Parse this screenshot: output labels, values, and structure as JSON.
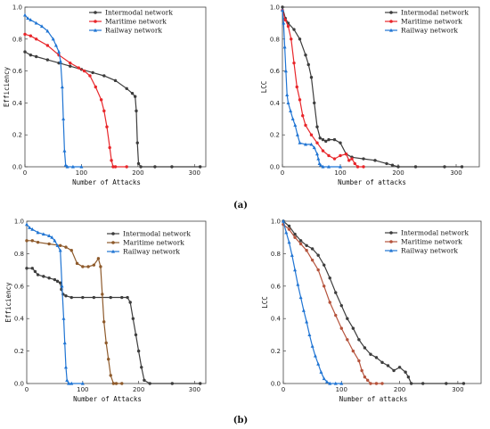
{
  "figure": {
    "label_a": "(a)",
    "label_b": "(b)"
  },
  "chart_data": [
    {
      "type": "line",
      "panel": "a-left",
      "xlabel": "Number of Attacks",
      "ylabel": "Efficiency",
      "xlim": [
        0,
        320
      ],
      "ylim": [
        0,
        1.0
      ],
      "xticks": [
        0,
        100,
        200,
        300
      ],
      "yticks": [
        0.0,
        0.2,
        0.4,
        0.6,
        0.8,
        1.0
      ],
      "legend_position": "top-center",
      "series": [
        {
          "name": "Intermodal network",
          "color": "#3d3d3d",
          "marker": "circle",
          "x": [
            0,
            10,
            20,
            40,
            60,
            80,
            100,
            120,
            140,
            160,
            180,
            190,
            195,
            197,
            199,
            201,
            205,
            230,
            260,
            310
          ],
          "y": [
            0.72,
            0.7,
            0.69,
            0.67,
            0.65,
            0.63,
            0.61,
            0.59,
            0.57,
            0.54,
            0.49,
            0.46,
            0.44,
            0.35,
            0.15,
            0.02,
            0.0,
            0.0,
            0.0,
            0.0
          ]
        },
        {
          "name": "Maritime network",
          "color": "#e8262a",
          "marker": "circle",
          "x": [
            0,
            10,
            20,
            40,
            60,
            80,
            95,
            105,
            115,
            125,
            135,
            140,
            145,
            150,
            153,
            156,
            160,
            180
          ],
          "y": [
            0.83,
            0.82,
            0.8,
            0.76,
            0.7,
            0.65,
            0.62,
            0.6,
            0.57,
            0.5,
            0.42,
            0.35,
            0.25,
            0.12,
            0.04,
            0.0,
            0.0,
            0.0
          ]
        },
        {
          "name": "Railway network",
          "color": "#1f74d3",
          "marker": "triangle",
          "x": [
            0,
            5,
            10,
            20,
            30,
            40,
            50,
            55,
            60,
            63,
            66,
            68,
            70,
            72,
            75,
            85,
            100
          ],
          "y": [
            0.95,
            0.93,
            0.92,
            0.9,
            0.88,
            0.85,
            0.8,
            0.76,
            0.72,
            0.66,
            0.5,
            0.3,
            0.1,
            0.01,
            0.0,
            0.0,
            0.0
          ]
        }
      ]
    },
    {
      "type": "line",
      "panel": "a-right",
      "xlabel": "Number of attacks",
      "ylabel": "LCC",
      "xlim": [
        0,
        340
      ],
      "ylim": [
        0,
        1.0
      ],
      "xticks": [
        0,
        100,
        200,
        300
      ],
      "yticks": [
        0.0,
        0.2,
        0.4,
        0.6,
        0.8,
        1.0
      ],
      "legend_position": "top-right",
      "series": [
        {
          "name": "Intermodal network",
          "color": "#3d3d3d",
          "marker": "circle",
          "x": [
            0,
            5,
            10,
            20,
            30,
            40,
            45,
            50,
            55,
            60,
            65,
            70,
            75,
            80,
            90,
            100,
            110,
            120,
            140,
            160,
            180,
            190,
            200,
            230,
            280,
            310
          ],
          "y": [
            1.0,
            0.93,
            0.9,
            0.86,
            0.8,
            0.7,
            0.64,
            0.56,
            0.4,
            0.25,
            0.18,
            0.17,
            0.16,
            0.17,
            0.17,
            0.15,
            0.08,
            0.06,
            0.05,
            0.04,
            0.02,
            0.01,
            0.0,
            0.0,
            0.0,
            0.0
          ]
        },
        {
          "name": "Maritime network",
          "color": "#e8262a",
          "marker": "circle",
          "x": [
            0,
            5,
            10,
            15,
            20,
            25,
            30,
            35,
            40,
            50,
            60,
            70,
            80,
            90,
            100,
            110,
            115,
            120,
            125,
            130,
            140
          ],
          "y": [
            0.98,
            0.92,
            0.88,
            0.8,
            0.65,
            0.5,
            0.42,
            0.32,
            0.26,
            0.2,
            0.15,
            0.1,
            0.07,
            0.05,
            0.07,
            0.08,
            0.04,
            0.05,
            0.02,
            0.0,
            0.0
          ]
        },
        {
          "name": "Railway network",
          "color": "#1f74d3",
          "marker": "triangle",
          "x": [
            0,
            2,
            4,
            6,
            8,
            10,
            14,
            18,
            22,
            26,
            30,
            40,
            50,
            55,
            60,
            62,
            64,
            66,
            70,
            80,
            100
          ],
          "y": [
            0.98,
            0.9,
            0.75,
            0.6,
            0.45,
            0.4,
            0.35,
            0.3,
            0.26,
            0.2,
            0.15,
            0.14,
            0.14,
            0.12,
            0.08,
            0.05,
            0.02,
            0.01,
            0.0,
            0.0,
            0.0
          ]
        }
      ]
    },
    {
      "type": "line",
      "panel": "b-left",
      "xlabel": "Number of Attacks",
      "ylabel": "Efficiency",
      "xlim": [
        0,
        320
      ],
      "ylim": [
        0,
        1.0
      ],
      "xticks": [
        0,
        100,
        200,
        300
      ],
      "yticks": [
        0.0,
        0.2,
        0.4,
        0.6,
        0.8,
        1.0
      ],
      "legend_position": "top-right",
      "series": [
        {
          "name": "Intermodal network",
          "color": "#3d3d3d",
          "marker": "circle",
          "x": [
            0,
            10,
            15,
            20,
            30,
            40,
            50,
            55,
            60,
            62,
            65,
            70,
            80,
            100,
            120,
            150,
            170,
            180,
            185,
            190,
            195,
            200,
            205,
            210,
            220,
            260,
            310
          ],
          "y": [
            0.71,
            0.71,
            0.69,
            0.67,
            0.66,
            0.65,
            0.64,
            0.63,
            0.62,
            0.58,
            0.55,
            0.54,
            0.53,
            0.53,
            0.53,
            0.53,
            0.53,
            0.53,
            0.5,
            0.4,
            0.3,
            0.2,
            0.1,
            0.02,
            0.0,
            0.0,
            0.0
          ]
        },
        {
          "name": "Maritime network",
          "color": "#8e5a2b",
          "marker": "circle",
          "x": [
            0,
            10,
            20,
            40,
            60,
            70,
            80,
            90,
            100,
            110,
            120,
            128,
            132,
            135,
            138,
            142,
            146,
            150,
            155,
            160,
            170
          ],
          "y": [
            0.88,
            0.88,
            0.87,
            0.86,
            0.85,
            0.84,
            0.82,
            0.74,
            0.72,
            0.72,
            0.73,
            0.77,
            0.72,
            0.55,
            0.38,
            0.25,
            0.15,
            0.05,
            0.0,
            0.0,
            0.0
          ]
        },
        {
          "name": "Railway network",
          "color": "#1f74d3",
          "marker": "triangle",
          "x": [
            0,
            5,
            10,
            20,
            30,
            40,
            45,
            50,
            55,
            60,
            63,
            66,
            68,
            70,
            72,
            75,
            80,
            100
          ],
          "y": [
            0.98,
            0.96,
            0.95,
            0.93,
            0.92,
            0.91,
            0.9,
            0.88,
            0.85,
            0.82,
            0.6,
            0.4,
            0.25,
            0.1,
            0.02,
            0.0,
            0.0,
            0.0
          ]
        }
      ]
    },
    {
      "type": "line",
      "panel": "b-right",
      "xlabel": "Number of attacks",
      "ylabel": "LCC",
      "xlim": [
        0,
        340
      ],
      "ylim": [
        0,
        1.0
      ],
      "xticks": [
        0,
        100,
        200,
        300
      ],
      "yticks": [
        0.0,
        0.2,
        0.4,
        0.6,
        0.8,
        1.0
      ],
      "legend_position": "top-right",
      "series": [
        {
          "name": "Intermodal network",
          "color": "#3d3d3d",
          "marker": "circle",
          "x": [
            0,
            10,
            20,
            30,
            40,
            50,
            60,
            70,
            80,
            90,
            100,
            110,
            120,
            130,
            140,
            150,
            160,
            170,
            180,
            190,
            200,
            210,
            215,
            220,
            240,
            280,
            310
          ],
          "y": [
            1.0,
            0.97,
            0.92,
            0.88,
            0.85,
            0.83,
            0.79,
            0.73,
            0.65,
            0.56,
            0.48,
            0.4,
            0.34,
            0.27,
            0.22,
            0.18,
            0.16,
            0.13,
            0.11,
            0.08,
            0.1,
            0.07,
            0.04,
            0.0,
            0.0,
            0.0,
            0.0
          ]
        },
        {
          "name": "Maritime network",
          "color": "#b5533c",
          "marker": "circle",
          "x": [
            0,
            10,
            20,
            30,
            40,
            50,
            60,
            70,
            80,
            90,
            100,
            110,
            120,
            130,
            135,
            140,
            145,
            150,
            160,
            170
          ],
          "y": [
            0.98,
            0.95,
            0.9,
            0.86,
            0.82,
            0.76,
            0.7,
            0.6,
            0.5,
            0.42,
            0.34,
            0.27,
            0.2,
            0.14,
            0.08,
            0.04,
            0.02,
            0.0,
            0.0,
            0.0
          ]
        },
        {
          "name": "Railway network",
          "color": "#1f74d3",
          "marker": "triangle",
          "x": [
            0,
            5,
            10,
            15,
            20,
            25,
            30,
            35,
            40,
            45,
            50,
            55,
            60,
            65,
            70,
            75,
            80,
            90,
            100
          ],
          "y": [
            1.0,
            0.93,
            0.87,
            0.79,
            0.7,
            0.61,
            0.53,
            0.45,
            0.38,
            0.3,
            0.23,
            0.17,
            0.12,
            0.07,
            0.03,
            0.01,
            0.0,
            0.0,
            0.0
          ]
        }
      ]
    }
  ]
}
